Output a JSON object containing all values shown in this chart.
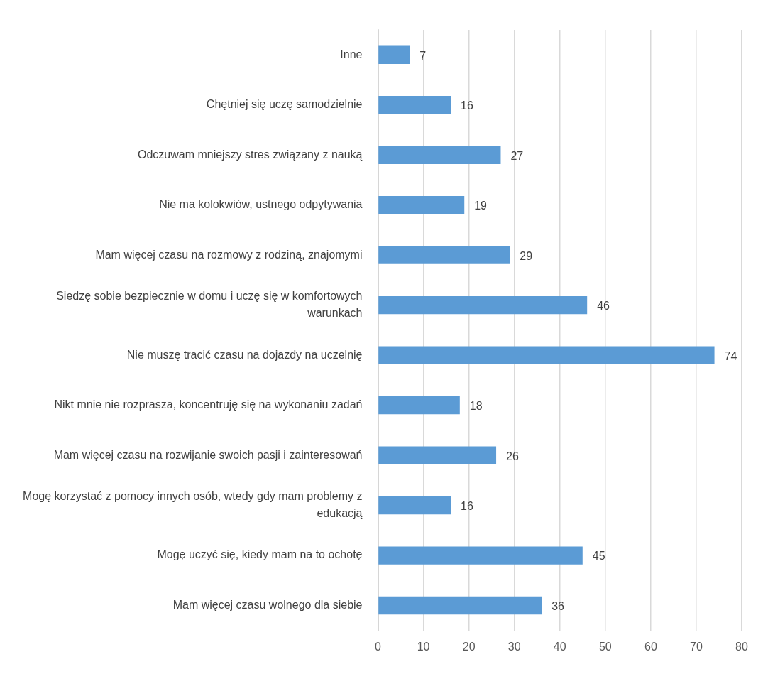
{
  "chart_data": {
    "type": "bar",
    "orientation": "horizontal",
    "categories": [
      "Inne",
      "Chętniej się uczę samodzielnie",
      "Odczuwam mniejszy stres związany z nauką",
      "Nie ma kolokwiów, ustnego odpytywania",
      "Mam więcej czasu na rozmowy z rodziną, znajomymi",
      "Siedzę sobie bezpiecznie w domu i uczę się w komfortowych warunkach",
      "Nie muszę tracić czasu na dojazdy na uczelnię",
      "Nikt mnie nie rozprasza, koncentruję się na wykonaniu zadań",
      "Mam więcej czasu na rozwijanie swoich pasji i zainteresowań",
      "Mogę korzystać z pomocy innych osób, wtedy gdy mam problemy z edukacją",
      "Mogę uczyć się, kiedy mam na to ochotę",
      "Mam więcej czasu wolnego dla siebie"
    ],
    "values": [
      7,
      16,
      27,
      19,
      29,
      46,
      74,
      18,
      26,
      16,
      45,
      36
    ],
    "color": "#5b9bd5",
    "xlim": [
      0,
      80
    ],
    "xticks": [
      0,
      10,
      20,
      30,
      40,
      50,
      60,
      70,
      80
    ],
    "grid": "x",
    "data_labels": true,
    "legend": false
  }
}
